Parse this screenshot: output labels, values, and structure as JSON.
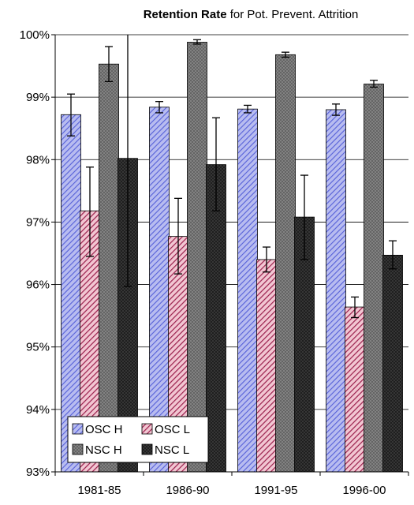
{
  "chart_data": {
    "type": "bar",
    "title_bold": "Retention Rate",
    "title_rest": " for Pot. Prevent. Attrition",
    "xlabel": "",
    "ylabel": "",
    "categories": [
      "1981-85",
      "1986-90",
      "1991-95",
      "1996-00"
    ],
    "ylim": [
      0.93,
      1.0
    ],
    "yticks": [
      0.93,
      0.94,
      0.95,
      0.96,
      0.97,
      0.98,
      0.99,
      1.0
    ],
    "ytick_labels": [
      "93%",
      "94%",
      "95%",
      "96%",
      "97%",
      "98%",
      "99%",
      "100%"
    ],
    "grid": "horizontal",
    "legend_position": "bottom-left",
    "series": [
      {
        "name": "OSC H",
        "pattern": "diagonal-blue",
        "values": [
          0.9872,
          0.9884,
          0.9881,
          0.988
        ],
        "err_low": [
          0.9838,
          0.9875,
          0.9875,
          0.9871
        ],
        "err_high": [
          0.9905,
          0.9893,
          0.9887,
          0.9889
        ]
      },
      {
        "name": "OSC L",
        "pattern": "diagonal-red",
        "values": [
          0.9718,
          0.9677,
          0.964,
          0.9564
        ],
        "err_low": [
          0.9645,
          0.9617,
          0.962,
          0.9547
        ],
        "err_high": [
          0.9788,
          0.9738,
          0.966,
          0.958
        ]
      },
      {
        "name": "NSC H",
        "pattern": "crosshatch-gray",
        "values": [
          0.9953,
          0.9988,
          0.9968,
          0.9921
        ],
        "err_low": [
          0.9925,
          0.9985,
          0.9964,
          0.9916
        ],
        "err_high": [
          0.9981,
          0.9992,
          0.9972,
          0.9927
        ]
      },
      {
        "name": "NSC L",
        "pattern": "crosshatch-dark",
        "values": [
          0.9802,
          0.9792,
          0.9708,
          0.9647
        ],
        "err_low": [
          0.9597,
          0.9718,
          0.964,
          0.9625
        ],
        "err_high": [
          1.0,
          0.9867,
          0.9775,
          0.967
        ]
      }
    ]
  }
}
